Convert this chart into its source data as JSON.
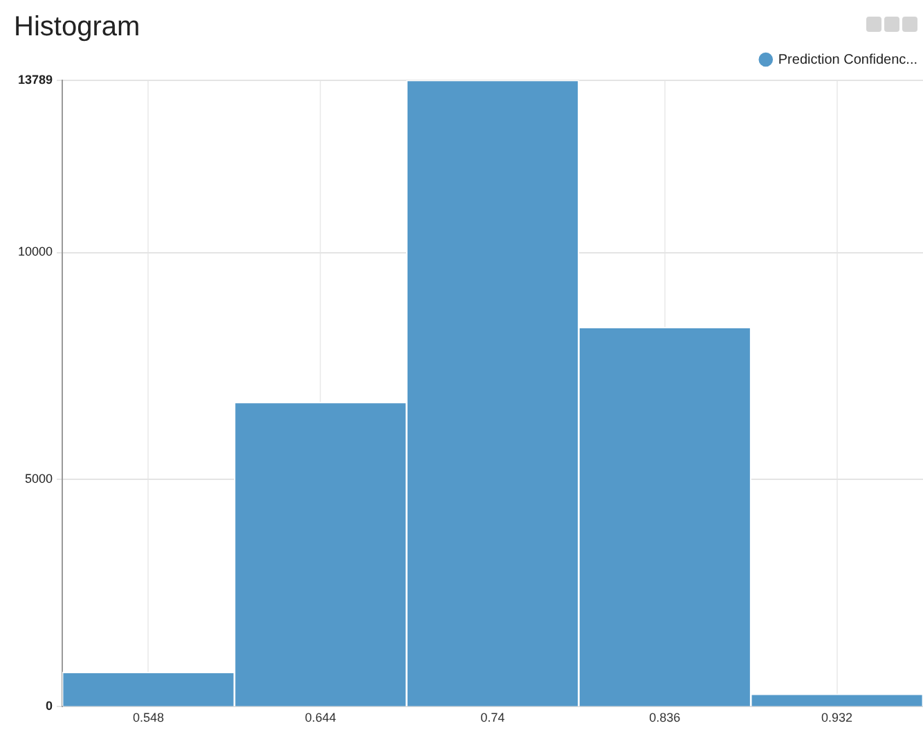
{
  "chart_data": {
    "type": "histogram",
    "title": "Histogram",
    "bins": [
      0.5,
      0.596,
      0.692,
      0.788,
      0.884,
      0.98
    ],
    "series": [
      {
        "name": "Prediction Confidenc...",
        "color": "#5499c9",
        "values": [
          760,
          6700,
          13789,
          8350,
          280
        ]
      }
    ],
    "xlim": [
      0.5,
      0.98
    ],
    "xticks": [
      0.548,
      0.644,
      0.74,
      0.836,
      0.932
    ],
    "ylim": [
      0,
      13789
    ],
    "yticks": [
      0,
      5000,
      10000,
      13789
    ],
    "grid": true,
    "legend": "top right"
  }
}
